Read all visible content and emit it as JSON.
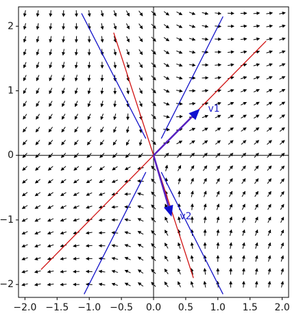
{
  "chart_data": {
    "type": "vector_field",
    "title": "",
    "xlabel": "",
    "ylabel": "",
    "xlim": [
      -2.1,
      2.1
    ],
    "ylim": [
      -2.2,
      2.3
    ],
    "xticks": [
      -2.0,
      -1.5,
      -1.0,
      -0.5,
      0.0,
      0.5,
      1.0,
      1.5,
      2.0
    ],
    "xtick_labels": [
      "−2.0",
      "−1.5",
      "−1.0",
      "−0.5",
      "0.0",
      "0.5",
      "1.0",
      "1.5",
      "2.0"
    ],
    "yticks": [
      -2,
      -1,
      0,
      1,
      2
    ],
    "ytick_labels": [
      "−2",
      "−1",
      "0",
      "1",
      "2"
    ],
    "grid": false,
    "field": {
      "description": "direction field of the linear system x' = A x, with eigenvector lines",
      "x_range": [
        -2.0,
        2.0
      ],
      "y_range": [
        -2.0,
        2.2
      ],
      "step": 0.2,
      "matrix": [
        [
          1.0,
          0.6
        ],
        [
          1.0,
          -0.6
        ]
      ],
      "arrow_color": "#000000"
    },
    "lines": [
      {
        "color": "#d01010",
        "points": [
          [
            -1.75,
            -1.77
          ],
          [
            1.75,
            1.77
          ]
        ]
      },
      {
        "color": "#d01010",
        "points": [
          [
            -0.62,
            1.9
          ],
          [
            0.62,
            -1.9
          ]
        ]
      },
      {
        "color": "#1010c8",
        "points": [
          [
            -1.12,
            2.2
          ],
          [
            -0.12,
            0.26
          ]
        ]
      },
      {
        "color": "#1010c8",
        "points": [
          [
            0.12,
            0.26
          ],
          [
            1.08,
            2.15
          ]
        ]
      },
      {
        "color": "#1010c8",
        "points": [
          [
            -1.08,
            -2.15
          ],
          [
            -0.12,
            -0.26
          ]
        ]
      },
      {
        "color": "#1010c8",
        "points": [
          [
            0.12,
            -0.26
          ],
          [
            1.08,
            -2.15
          ]
        ]
      }
    ],
    "vectors": [
      {
        "label": "v1",
        "x": 0.72,
        "y": 0.72,
        "color": "#5520c0",
        "head_color": "#1010d0"
      },
      {
        "label": "v2",
        "x": 0.28,
        "y": -0.95,
        "color": "#5520c0",
        "head_color": "#1010d0"
      }
    ]
  }
}
